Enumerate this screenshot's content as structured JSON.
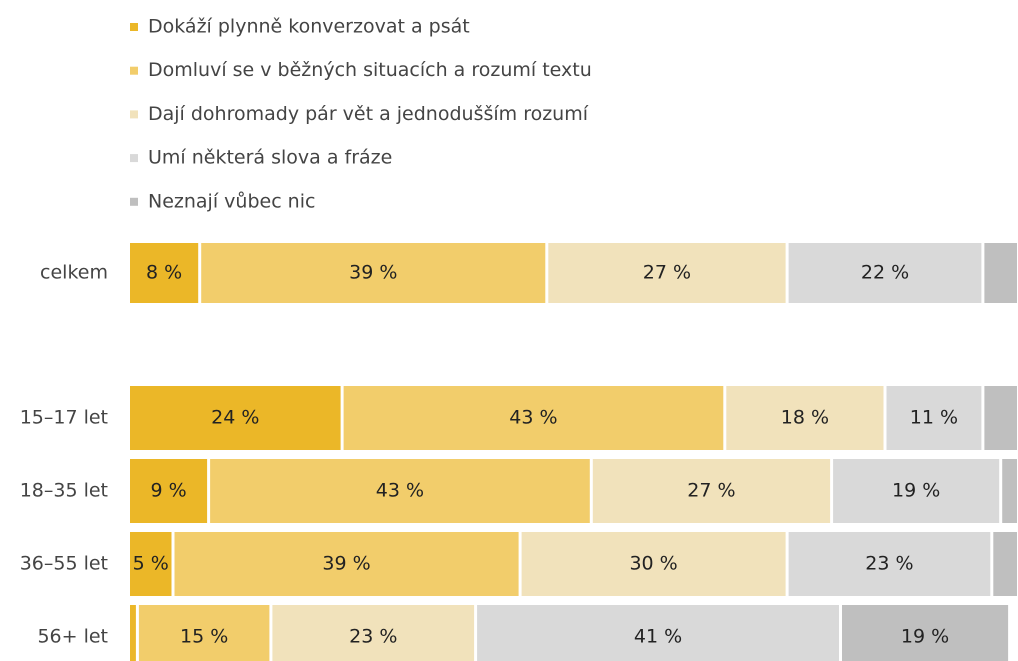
{
  "chart_data": {
    "type": "bar",
    "orientation": "horizontal",
    "stacked": true,
    "categories": [
      "celkem",
      "15–17 let",
      "18–35 let",
      "36–55 let",
      "56+ let"
    ],
    "xlim": [
      0,
      100
    ],
    "legend": "top-left",
    "series": [
      {
        "name": "Dokáží plynně konverzovat a psát",
        "color": "#ebb728",
        "values": [
          8,
          24,
          9,
          5,
          1
        ],
        "value_labels": [
          "8 %",
          "24 %",
          "9 %",
          "5 %",
          null
        ]
      },
      {
        "name": "Domluví se v běžných situacích a rozumí textu",
        "color": "#f2cd6b",
        "values": [
          39,
          43,
          43,
          39,
          15
        ],
        "value_labels": [
          "39 %",
          "43 %",
          "43 %",
          "39 %",
          "15 %"
        ]
      },
      {
        "name": "Dají dohromady pár vět a jednodušším rozumí",
        "color": "#f1e2bb",
        "values": [
          27,
          18,
          27,
          30,
          23
        ],
        "value_labels": [
          "27 %",
          "18 %",
          "27 %",
          "30 %",
          "23 %"
        ]
      },
      {
        "name": "Umí některá slova a fráze",
        "color": "#d9d9d9",
        "values": [
          22,
          11,
          19,
          23,
          41
        ],
        "value_labels": [
          "22 %",
          "11 %",
          "19 %",
          "23 %",
          "41 %"
        ]
      },
      {
        "name": "Neznají vůbec nic",
        "color": "#bfbfbf",
        "values": [
          4,
          4,
          2,
          3,
          19
        ],
        "value_labels": [
          null,
          null,
          null,
          null,
          "19 %"
        ]
      }
    ]
  }
}
